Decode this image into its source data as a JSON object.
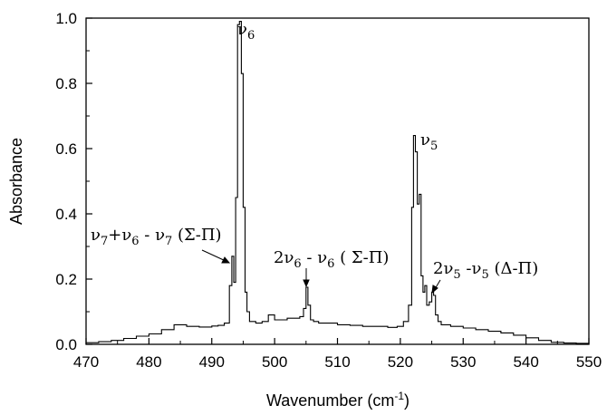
{
  "chart_data": {
    "type": "line",
    "xlabel": "Wavenumber (cm-1)",
    "xlabel_main": "Wavenumber (cm",
    "xlabel_sup": "-1",
    "xlabel_close": ")",
    "ylabel": "Absorbance",
    "xlim": [
      470,
      550
    ],
    "ylim": [
      0.0,
      1.0
    ],
    "x_ticks": [
      470,
      480,
      490,
      500,
      510,
      520,
      530,
      540,
      550
    ],
    "y_ticks": [
      "0.0",
      "0.2",
      "0.4",
      "0.6",
      "0.8",
      "1.0"
    ],
    "grid": false,
    "line_color": "#000000",
    "series": [
      {
        "x": [
          470,
          472,
          474,
          476,
          478,
          480,
          482,
          484,
          486,
          488,
          490,
          491,
          492,
          492.8,
          493.2,
          493.5,
          493.8,
          494.1,
          494.4,
          494.7,
          495.0,
          495.3,
          495.6,
          496,
          497,
          498,
          499,
          500,
          501,
          502,
          503,
          504,
          504.6,
          505.0,
          505.3,
          505.7,
          506.2,
          507,
          508,
          510,
          512,
          514,
          516,
          518,
          519.5,
          520.5,
          521.3,
          521.8,
          522.1,
          522.4,
          522.7,
          523.0,
          523.3,
          523.6,
          523.9,
          524.2,
          524.6,
          525.0,
          525.3,
          525.6,
          526.0,
          526.5,
          527,
          528,
          530,
          532,
          534,
          536,
          538,
          540,
          542,
          544,
          546,
          548,
          550
        ],
        "y": [
          0.005,
          0.008,
          0.012,
          0.018,
          0.025,
          0.032,
          0.045,
          0.06,
          0.055,
          0.053,
          0.056,
          0.058,
          0.065,
          0.18,
          0.27,
          0.19,
          0.45,
          0.98,
          0.99,
          0.83,
          0.42,
          0.16,
          0.1,
          0.07,
          0.065,
          0.07,
          0.09,
          0.075,
          0.075,
          0.08,
          0.08,
          0.085,
          0.11,
          0.175,
          0.12,
          0.075,
          0.07,
          0.065,
          0.065,
          0.06,
          0.058,
          0.055,
          0.055,
          0.052,
          0.055,
          0.07,
          0.12,
          0.42,
          0.64,
          0.59,
          0.43,
          0.46,
          0.21,
          0.16,
          0.18,
          0.12,
          0.13,
          0.16,
          0.15,
          0.09,
          0.07,
          0.06,
          0.06,
          0.055,
          0.05,
          0.045,
          0.04,
          0.035,
          0.028,
          0.02,
          0.012,
          0.006,
          0.004,
          0.003,
          0.002
        ]
      }
    ],
    "annotations": [
      {
        "id": "v6",
        "base": "ν",
        "sub": "6",
        "peak_x": 494.4,
        "peak_y": 0.99
      },
      {
        "id": "v5",
        "base": "ν",
        "sub": "5",
        "peak_x": 522.1,
        "peak_y": 0.64
      },
      {
        "id": "hot1",
        "text": "ν7+ν6 - ν7 (Σ-Π)",
        "part1": "ν",
        "sub1": "7",
        "part2": "+ν",
        "sub2": "6",
        "part3": " - ν",
        "sub3": "7",
        "part4": " (Σ-Π)",
        "peak_x": 493.2,
        "peak_y": 0.27
      },
      {
        "id": "hot2",
        "text": "2ν6 - ν6 ( Σ-Π)",
        "part1": "2ν",
        "sub1": "6",
        "part2": " - ν",
        "sub2": "6",
        "part3": " ( Σ-Π)",
        "peak_x": 505.0,
        "peak_y": 0.175
      },
      {
        "id": "hot3",
        "text": "2ν5 -ν5 (Δ-Π)",
        "part1": "2ν",
        "sub1": "5",
        "part2": " -ν",
        "sub2": "5",
        "part3": " (Δ-Π)",
        "peak_x": 525.0,
        "peak_y": 0.16
      }
    ]
  }
}
